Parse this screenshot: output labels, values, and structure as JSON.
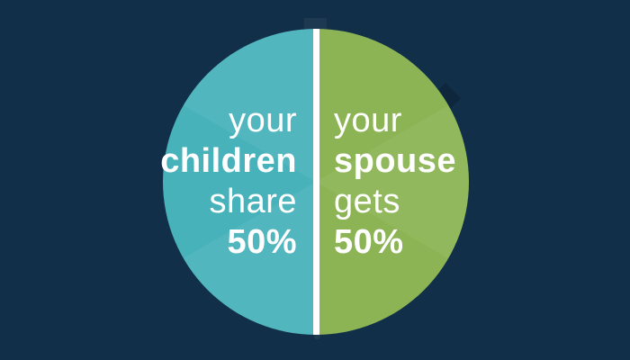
{
  "background_color": "#112F48",
  "divider_color": "#FFFFFF",
  "text_color": "#FFFFFF",
  "chart_data": {
    "type": "pie",
    "title": "",
    "legend": "none",
    "slices": [
      {
        "name": "children",
        "value": 50,
        "unit": "%",
        "color": "#48B2BB",
        "lines": [
          {
            "text": "your",
            "bold": false
          },
          {
            "text": "children",
            "bold": true
          },
          {
            "text": "share",
            "bold": false
          },
          {
            "text": "50%",
            "bold": true
          }
        ]
      },
      {
        "name": "spouse",
        "value": 50,
        "unit": "%",
        "color": "#8CB454",
        "lines": [
          {
            "text": "your",
            "bold": false
          },
          {
            "text": "spouse",
            "bold": true
          },
          {
            "text": "gets",
            "bold": false
          },
          {
            "text": "50%",
            "bold": true
          }
        ]
      }
    ]
  }
}
